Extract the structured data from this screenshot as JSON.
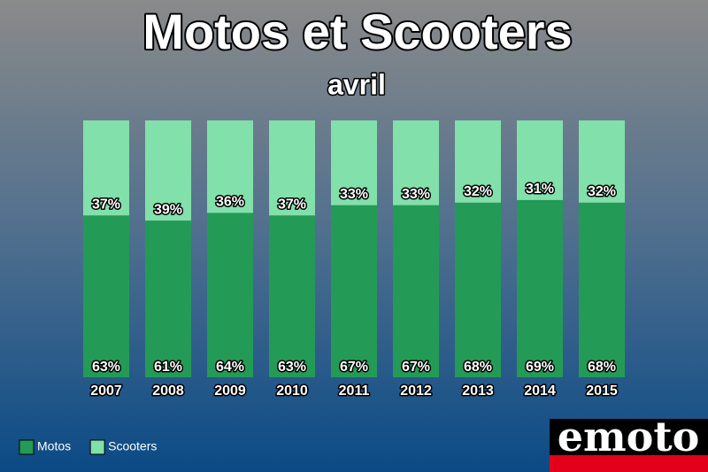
{
  "chart_data": {
    "type": "stacked_bar",
    "title": "Motos et Scooters",
    "subtitle": "avril",
    "categories": [
      "2007",
      "2008",
      "2009",
      "2010",
      "2011",
      "2012",
      "2013",
      "2014",
      "2015"
    ],
    "series": [
      {
        "name": "Motos",
        "color": "#239b56",
        "values": [
          63,
          61,
          64,
          63,
          67,
          67,
          68,
          69,
          68
        ]
      },
      {
        "name": "Scooters",
        "color": "#82e0aa",
        "values": [
          37,
          39,
          36,
          37,
          33,
          33,
          32,
          31,
          32
        ]
      }
    ],
    "value_labels": [
      [
        "63%",
        "61%",
        "64%",
        "63%",
        "67%",
        "67%",
        "68%",
        "69%",
        "68%"
      ],
      [
        "37%",
        "39%",
        "36%",
        "37%",
        "33%",
        "33%",
        "32%",
        "31%",
        "32%"
      ]
    ],
    "legend": "bottom-left",
    "logo": "emoto"
  }
}
